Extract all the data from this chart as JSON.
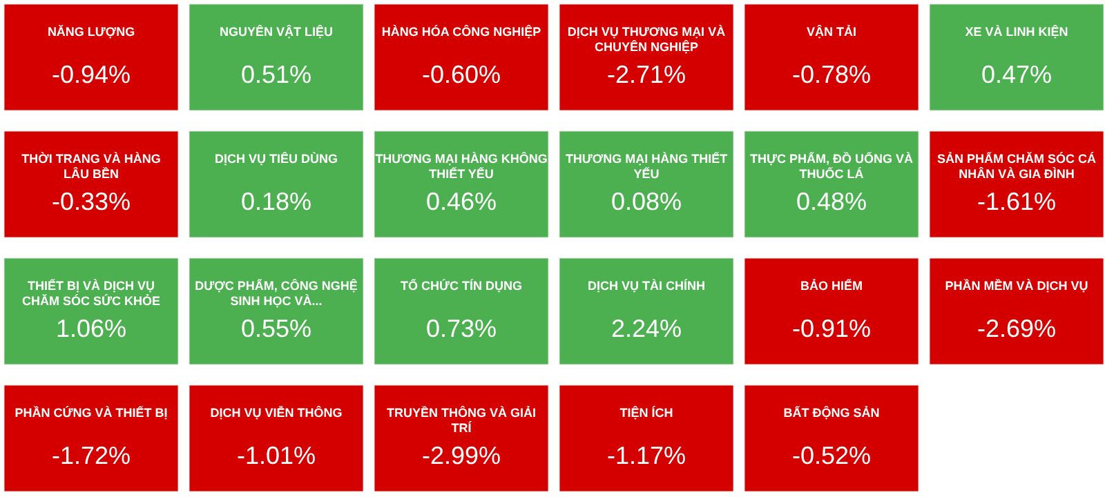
{
  "chart_data": {
    "type": "other",
    "categories": [
      "NĂNG LƯỢNG",
      "NGUYÊN VẬT LIỆU",
      "HÀNG HÓA CÔNG NGHIỆP",
      "DỊCH VỤ THƯƠNG MẠI VÀ CHUYÊN NGHIỆP",
      "VẬN TẢI",
      "XE VÀ LINH KIỆN",
      "THỜI TRANG VÀ HÀNG LÂU BỀN",
      "DỊCH VỤ TIÊU DÙNG",
      "THƯƠNG MẠI HÀNG KHÔNG THIẾT YẾU",
      "THƯƠNG MẠI HÀNG THIẾT YẾU",
      "THỰC PHẨM, ĐỒ UỐNG VÀ THUỐC LÁ",
      "SẢN PHẨM CHĂM SÓC CÁ NHÂN VÀ GIA ĐÌNH",
      "THIẾT BỊ VÀ DỊCH VỤ CHĂM SÓC SỨC KHỎE",
      "DƯỢC PHẨM, CÔNG NGHỆ SINH HỌC VÀ...",
      "TỔ CHỨC TÍN DỤNG",
      "DỊCH VỤ TÀI CHÍNH",
      "BẢO HIỂM",
      "PHẦN MỀM VÀ DỊCH VỤ",
      "PHẦN CỨNG VÀ THIẾT BỊ",
      "DỊCH VỤ VIỄN THÔNG",
      "TRUYỀN THÔNG VÀ GIẢI TRÍ",
      "TIỆN ÍCH",
      "BẤT ĐỘNG SẢN"
    ],
    "values": [
      -0.94,
      0.51,
      -0.6,
      -2.71,
      -0.78,
      0.47,
      -0.33,
      0.18,
      0.46,
      0.08,
      0.48,
      -1.61,
      1.06,
      0.55,
      0.73,
      2.24,
      -0.91,
      -2.69,
      -1.72,
      -1.01,
      -2.99,
      -1.17,
      -0.52
    ],
    "value_labels": [
      "-0.94%",
      "0.51%",
      "-0.60%",
      "-2.71%",
      "-0.78%",
      "0.47%",
      "-0.33%",
      "0.18%",
      "0.46%",
      "0.08%",
      "0.48%",
      "-1.61%",
      "1.06%",
      "0.55%",
      "0.73%",
      "2.24%",
      "-0.91%",
      "-2.69%",
      "-1.72%",
      "-1.01%",
      "-2.99%",
      "-1.17%",
      "-0.52%"
    ],
    "colors": [
      "#d40000",
      "#4caf50",
      "#d40000",
      "#d40000",
      "#d40000",
      "#4caf50",
      "#d40000",
      "#4caf50",
      "#4caf50",
      "#4caf50",
      "#4caf50",
      "#d40000",
      "#4caf50",
      "#4caf50",
      "#4caf50",
      "#4caf50",
      "#d40000",
      "#d40000",
      "#d40000",
      "#d40000",
      "#d40000",
      "#d40000",
      "#d40000"
    ]
  }
}
